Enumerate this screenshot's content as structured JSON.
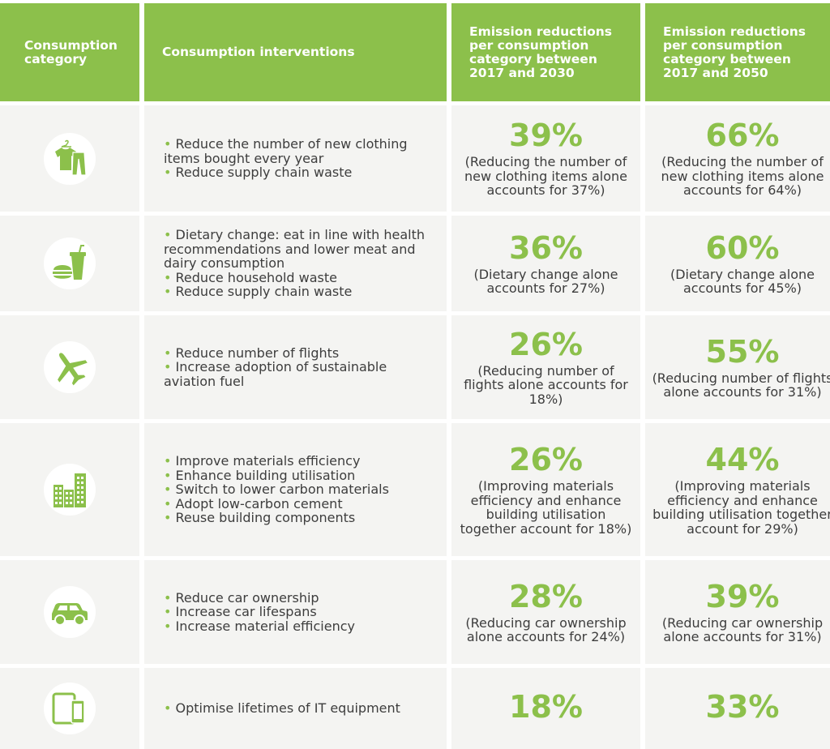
{
  "colors": {
    "accent": "#8cc04b",
    "cell_bg": "#f4f4f2",
    "text": "#3d3d3d"
  },
  "header": {
    "category": "Consumption category",
    "interventions": "Consumption interventions",
    "col_2030": "Emission reductions per consumption category between 2017 and 2030",
    "col_2050": "Emission reductions per consumption category between 2017 and 2050"
  },
  "rows": [
    {
      "icon": "clothing-icon",
      "interventions": [
        "Reduce the number of new clothing items bought every year",
        "Reduce supply chain waste"
      ],
      "pct_2030": "39%",
      "note_2030": "(Reducing the number of new clothing items alone accounts for 37%)",
      "pct_2050": "66%",
      "note_2050": "(Reducing the number of new clothing items alone accounts for 64%)"
    },
    {
      "icon": "food-icon",
      "interventions": [
        "Dietary change: eat in line with health recommendations and lower meat and dairy consumption",
        "Reduce household waste",
        "Reduce supply chain waste"
      ],
      "pct_2030": "36%",
      "note_2030": "(Dietary change alone accounts for 27%)",
      "pct_2050": "60%",
      "note_2050": "(Dietary change alone accounts for 45%)"
    },
    {
      "icon": "airplane-icon",
      "interventions": [
        "Reduce number of flights",
        "Increase adoption of sustainable aviation fuel"
      ],
      "pct_2030": "26%",
      "note_2030": "(Reducing number of flights alone accounts for 18%)",
      "pct_2050": "55%",
      "note_2050": "(Reducing number of flights alone accounts for 31%)"
    },
    {
      "icon": "buildings-icon",
      "interventions": [
        "Improve materials efficiency",
        "Enhance building utilisation",
        "Switch to lower carbon materials",
        "Adopt low-carbon cement",
        "Reuse building components"
      ],
      "pct_2030": "26%",
      "note_2030": "(Improving materials efficiency and enhance building utilisation together account for 18%)",
      "pct_2050": "44%",
      "note_2050": "(Improving materials efficiency and enhance building utilisation together account for 29%)"
    },
    {
      "icon": "car-icon",
      "interventions": [
        "Reduce car ownership",
        "Increase car lifespans",
        "Increase material efficiency"
      ],
      "pct_2030": "28%",
      "note_2030": "(Reducing car ownership alone accounts for 24%)",
      "pct_2050": "39%",
      "note_2050": "(Reducing car ownership alone accounts for 31%)"
    },
    {
      "icon": "devices-icon",
      "interventions": [
        "Optimise lifetimes of IT equipment"
      ],
      "pct_2030": "18%",
      "note_2030": "",
      "pct_2050": "33%",
      "note_2050": ""
    }
  ]
}
